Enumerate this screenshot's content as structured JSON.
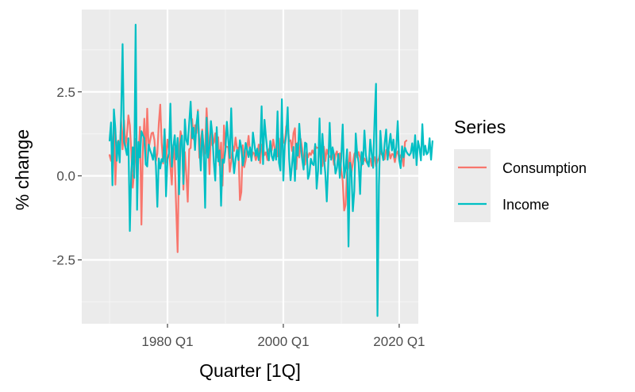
{
  "chart_data": {
    "type": "line",
    "xlabel": "Quarter [1Q]",
    "ylabel": "% change",
    "x_ticks": [
      "1980 Q1",
      "2000 Q1",
      "2020 Q1"
    ],
    "x_tick_years": [
      1980,
      2000,
      2020
    ],
    "y_ticks": [
      -2.5,
      0.0,
      2.5
    ],
    "y_tick_labels": [
      "-2.5",
      "0.0",
      "2.5"
    ],
    "xlim": [
      1965.2,
      2023.3
    ],
    "ylim": [
      -4.4,
      4.95
    ],
    "grid": true,
    "legend": {
      "title": "Series",
      "position": "right"
    },
    "x_start": 1970.0,
    "x_step": 0.25,
    "series": [
      {
        "name": "Consumption",
        "color": "#F8766D",
        "values": [
          0.62,
          0.45,
          0.87,
          1.41,
          -0.26,
          0.95,
          1.05,
          0.7,
          1.65,
          0.79,
          1.65,
          0.86,
          1.21,
          1.8,
          1.51,
          0.72,
          -0.35,
          0.11,
          1.1,
          -0.25,
          0.61,
          1.46,
          -1.45,
          0.81,
          1.7,
          0.45,
          2.0,
          0.82,
          1.05,
          1.27,
          1.29,
          1.06,
          0.44,
          0.67,
          1.56,
          2.12,
          0.98,
          0.37,
          1.36,
          0.4,
          1.08,
          0.82,
          0.28,
          -0.26,
          0.92,
          0.49,
          -0.95,
          -2.27,
          0.73,
          1.33,
          1.12,
          -0.41,
          0.71,
          0.02,
          -0.77,
          0.79,
          0.83,
          1.69,
          1.09,
          1.51,
          1.27,
          1.96,
          0.54,
          1.07,
          1.38,
          0.59,
          0.78,
          2.01,
          1.19,
          0.05,
          1.37,
          0.91,
          0.99,
          1.27,
          0.55,
          1.15,
          0.31,
          0.99,
          -0.29,
          1.5,
          0.9,
          0.86,
          0.86,
          0.12,
          0.42,
          0.89,
          0.74,
          1.14,
          0.81,
          0.84,
          -0.72,
          -0.48,
          0.91,
          0.26,
          0.47,
          0.82,
          1.19,
          0.68,
          0.51,
          0.7,
          0.66,
          0.47,
          0.64,
          0.93,
          0.38,
          0.93,
          0.86,
          0.62,
          0.7,
          0.47,
          0.78,
          0.86,
          0.76,
          1.08,
          0.83,
          0.64,
          0.58,
          1.11,
          0.46,
          1.48,
          1.02,
          0.96,
          1.47,
          1.56,
          1.03,
          1.06,
          0.74,
          1.27,
          1.42,
          0.2,
          0.99,
          0.55,
          1.1,
          0.81,
          0.31,
          0.34,
          0.71,
          0.55,
          0.68,
          0.62,
          0.76,
          0.66,
          0.9,
          0.83,
          0.84,
          0.81,
          0.45,
          0.29,
          0.87,
          0.44,
          0.78,
          0.64,
          0.57,
          0.54,
          0.64,
          0.33,
          0.63,
          0.73,
          0.45,
          0.67,
          0.16,
          -0.15,
          -1.03,
          -0.86,
          0.12,
          0.29,
          0.7,
          0.09,
          0.37,
          0.65,
          0.73,
          0.55,
          0.71,
          0.54,
          0.31,
          0.38,
          0.52,
          0.44,
          0.37,
          0.43,
          0.52,
          0.3,
          0.51,
          0.56,
          0.29,
          0.45,
          0.52,
          0.73,
          0.63,
          0.61,
          0.49,
          0.77,
          0.81,
          0.71,
          0.52,
          0.65,
          0.64,
          0.41,
          0.65,
          0.73,
          0.52,
          0.61,
          0.65,
          0.29,
          1.01,
          1.05
        ]
      },
      {
        "name": "Income",
        "color": "#00BFC4",
        "values": [
          1.05,
          1.59,
          -0.28,
          1.98,
          1.4,
          0.45,
          1.03,
          0.4,
          1.8,
          3.92,
          1.02,
          0.83,
          0.62,
          1.12,
          -1.64,
          0.1,
          0.85,
          -0.06,
          4.5,
          -1.01,
          1.01,
          0.55,
          1.33,
          1.21,
          1.12,
          0.34,
          0.28,
          0.93,
          0.76,
          0.64,
          0.48,
          0.85,
          0.3,
          -0.92,
          0.52,
          0.22,
          0.5,
          0.42,
          1.39,
          -0.61,
          0.5,
          0.67,
          2.15,
          0.27,
          0.86,
          1.21,
          0.49,
          1.13,
          -0.55,
          0.98,
          1.2,
          -0.24,
          1.68,
          1.06,
          0.93,
          1.58,
          2.21,
          1.12,
          1.43,
          0.77,
          1.54,
          1.91,
          0.94,
          0.16,
          1.33,
          0.82,
          -0.95,
          1.73,
          0.54,
          0.86,
          1.63,
          1.22,
          0.4,
          -0.14,
          1.45,
          0.43,
          0.76,
          -0.89,
          0.49,
          0.39,
          0.77,
          1.61,
          1.07,
          0.53,
          2.01,
          0.65,
          0.08,
          0.5,
          0.77,
          0.47,
          1.06,
          0.84,
          0.31,
          0.56,
          0.98,
          0.78,
          0.56,
          0.85,
          0.45,
          1.29,
          0.95,
          0.6,
          0.81,
          0.47,
          0.75,
          2.07,
          0.35,
          1.67,
          1.16,
          0.71,
          0.46,
          1.04,
          0.59,
          0.46,
          0.79,
          0.48,
          1.92,
          0.39,
          0.16,
          2.28,
          -0.14,
          0.91,
          1.22,
          2.04,
          0.52,
          -0.13,
          0.34,
          0.86,
          -0.15,
          0.96,
          0.6,
          1.55,
          0.91,
          0.5,
          0.19,
          0.99,
          0.96,
          -0.09,
          0.06,
          0.51,
          0.36,
          0.32,
          0.95,
          -0.38,
          0.15,
          1.71,
          0.06,
          1.25,
          0.54,
          0.07,
          -0.76,
          0.32,
          1.58,
          0.48,
          0.85,
          0.62,
          0.07,
          0.24,
          0.65,
          -0.06,
          0.55,
          1.53,
          -0.06,
          0.23,
          0.79,
          -2.1,
          0.39,
          0.12,
          -1.05,
          -0.45,
          1.26,
          0.65,
          0.39,
          -0.54,
          0.71,
          0.35,
          1.35,
          0.61,
          0.38,
          0.28,
          1.08,
          0.66,
          0.24,
          1.66,
          2.74,
          -4.17,
          -0.28,
          1.34,
          0.72,
          0.47,
          0.98,
          1.38,
          0.48,
          0.9,
          1.25,
          0.76,
          1.08,
          0.55,
          0.85,
          1.63,
          0.48,
          0.23,
          0.88,
          0.55,
          0.84,
          0.72,
          0.65,
          0.61,
          0.68,
          0.97,
          0.53,
          1.21,
          0.32,
          1.04,
          0.83,
          0.46,
          1.54,
          0.62,
          0.9,
          0.64,
          0.7,
          1.12,
          0.48,
          1.03
        ]
      }
    ]
  }
}
